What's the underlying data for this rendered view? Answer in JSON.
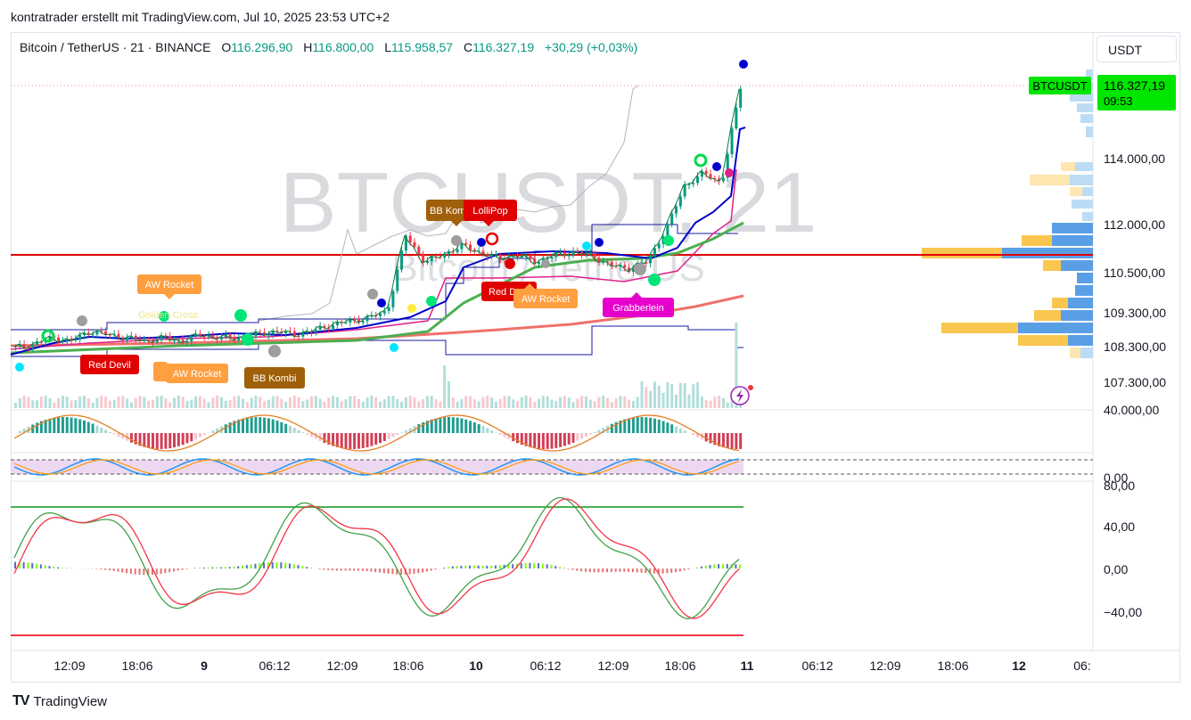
{
  "caption": "kontratrader erstellt mit TradingView.com, Jul 10, 2025 23:53 UTC+2",
  "legend": {
    "symbol": "Bitcoin / TetherUS · 21 · BINANCE",
    "o_label": "O",
    "o": "116.296,90",
    "h_label": "H",
    "h": "116.800,00",
    "l_label": "L",
    "l": "115.958,57",
    "c_label": "C",
    "c": "116.327,19",
    "change": "+30,29 (+0,03%)"
  },
  "currency_button": "USDT",
  "watermark": {
    "main": "BTCUSDT, 21",
    "sub": "Bitcoin / TetherUS"
  },
  "price_badge": {
    "ticker": "BTCUSDT",
    "price": "116.327,19",
    "countdown": "09:53"
  },
  "colors": {
    "up": "#089981",
    "down": "#f23645",
    "accent": "#00ff22",
    "blue": "#0000cc",
    "badge": "#00e600"
  },
  "chart_data": {
    "type": "candlestick",
    "price_axis_ticks": [
      "114.000,00",
      "112.000,00",
      "110.500,00",
      "109.300,00",
      "108.300,00",
      "107.300,00"
    ],
    "time_axis_ticks": [
      "12:09",
      "18:06",
      "9",
      "06:12",
      "12:09",
      "18:06",
      "10",
      "06:12",
      "12:09",
      "18:06",
      "11",
      "06:12",
      "12:09",
      "18:06",
      "12",
      "06:"
    ],
    "close_path": [
      108400,
      108500,
      108700,
      108600,
      108900,
      108800,
      108700,
      108600,
      108700,
      108600,
      108800,
      108700,
      108700,
      108800,
      108900,
      108800,
      108900,
      109100,
      109200,
      109300,
      109500,
      111800,
      111000,
      111200,
      111500,
      111300,
      111100,
      111200,
      111000,
      111200,
      111300,
      111200,
      110900,
      110800,
      111000,
      112000,
      113300,
      113700,
      113400,
      116300
    ],
    "labels": [
      "Red Devil",
      "AW Rocket",
      "AW Rocket",
      "AW Rocket",
      "BB Kombi",
      "BB Kombi",
      "LolliPop",
      "Red D",
      "AW Rocket",
      "Grabberlein"
    ],
    "ghost_labels": [
      "Golden Cross"
    ],
    "pane_rsi": {
      "ticks": [
        "40.000,00"
      ]
    },
    "pane_osc": {
      "ticks": [
        "0,00"
      ]
    },
    "pane_stoch": {
      "ticks": [
        "80,00",
        "40,00",
        "0,00",
        "−40,00"
      ]
    }
  },
  "footer": {
    "logo": "TV",
    "brand": "TradingView"
  }
}
